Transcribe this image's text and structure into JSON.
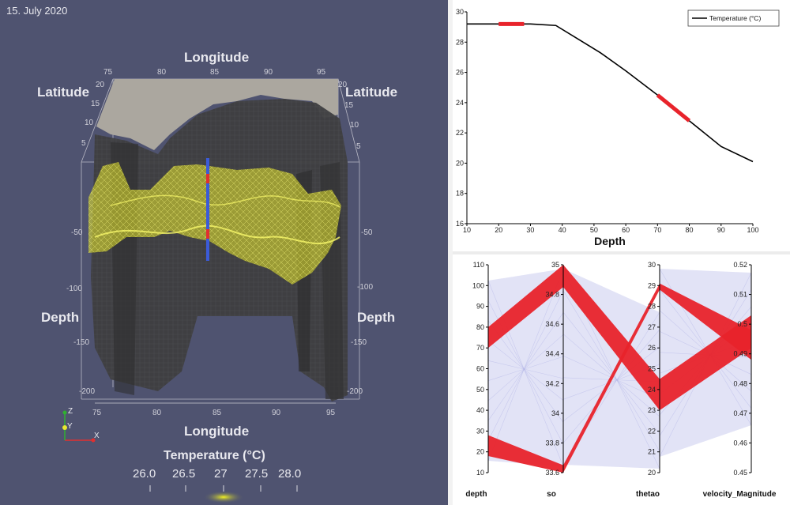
{
  "scene": {
    "date": "15. July 2020",
    "longitude_label": "Longitude",
    "latitude_label": "Latitude",
    "depth_label": "Depth",
    "lon_ticks": [
      "75",
      "80",
      "85",
      "90",
      "95"
    ],
    "lat_ticks": [
      "20",
      "15",
      "10",
      "5"
    ],
    "depth_ticks": [
      "-50",
      "-100",
      "-150",
      "-200"
    ],
    "left_depth_ticks": [
      "-50",
      "-100",
      "-150",
      "-200"
    ],
    "axes": {
      "z": "Z",
      "y": "Y",
      "x": "X"
    },
    "colorbar": {
      "title": "Temperature (°C)",
      "ticks": [
        "26.0",
        "26.5",
        "27",
        "27.5",
        "28.0"
      ]
    },
    "colors": {
      "background": "#4f5370",
      "terrain": "#3e3e40",
      "isosurface": "#ecec30",
      "probe_blue": "#3b5bd8",
      "probe_red": "#e03030"
    }
  },
  "chart_data": [
    {
      "type": "line",
      "title": "",
      "xlabel": "Depth",
      "ylabel": "",
      "legend": "Temperature (°C)",
      "x_ticks": [
        "10",
        "20",
        "30",
        "40",
        "50",
        "60",
        "70",
        "80",
        "90",
        "100"
      ],
      "y_ticks": [
        "16",
        "18",
        "20",
        "22",
        "24",
        "26",
        "28",
        "30"
      ],
      "xlim": [
        10,
        100
      ],
      "ylim": [
        16,
        30
      ],
      "x": [
        10,
        20,
        30,
        38,
        45,
        52,
        60,
        70,
        80,
        90,
        100
      ],
      "y": [
        29.2,
        29.2,
        29.2,
        29.1,
        28.2,
        27.3,
        26.1,
        24.5,
        22.8,
        21.1,
        20.1
      ],
      "highlights": [
        [
          20,
          28
        ],
        [
          70,
          80
        ]
      ],
      "line_color": "#000000",
      "highlight_color": "#e8232b"
    },
    {
      "type": "parallel_coordinates",
      "axes": [
        {
          "name": "depth",
          "range": [
            10,
            110
          ],
          "ticks": [
            "10",
            "20",
            "30",
            "40",
            "50",
            "60",
            "70",
            "80",
            "90",
            "100",
            "110"
          ]
        },
        {
          "name": "so",
          "range": [
            33.6,
            35
          ],
          "ticks": [
            "33.6",
            "33.8",
            "34",
            "34.2",
            "34.4",
            "34.6",
            "34.8",
            "35"
          ]
        },
        {
          "name": "thetao",
          "range": [
            20,
            30
          ],
          "ticks": [
            "20",
            "21",
            "22",
            "23",
            "24",
            "25",
            "26",
            "27",
            "28",
            "29",
            "30"
          ]
        },
        {
          "name": "velocity_Magnitude",
          "range": [
            0.45,
            0.52
          ],
          "ticks": [
            "0.45",
            "0.46",
            "0.47",
            "0.48",
            "0.49",
            "0.5",
            "0.51",
            "0.52"
          ]
        }
      ],
      "selected_bands": [
        {
          "depth": [
            70,
            80
          ],
          "so": [
            34.85,
            35
          ],
          "thetao": [
            23,
            24.5
          ],
          "velocity_Magnitude": [
            0.492,
            0.503
          ]
        },
        {
          "depth": [
            18,
            28
          ],
          "so": [
            33.6,
            33.65
          ],
          "thetao": [
            28.8,
            29.1
          ],
          "velocity_Magnitude": [
            0.488,
            0.498
          ]
        }
      ],
      "selected_color": "#e8232b",
      "unselected_color": "#6b6fd0"
    }
  ]
}
